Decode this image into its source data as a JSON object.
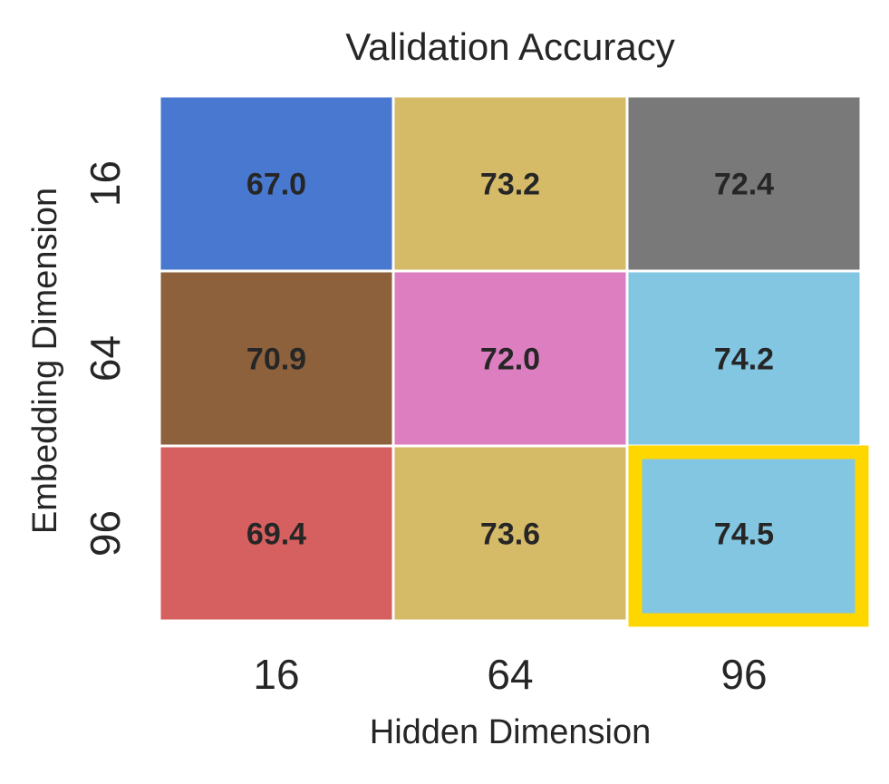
{
  "chart_data": {
    "type": "heatmap",
    "title": "Validation Accuracy",
    "xlabel": "Hidden Dimension",
    "ylabel": "Embedding Dimension",
    "x_categories": [
      "16",
      "64",
      "96"
    ],
    "y_categories": [
      "16",
      "64",
      "96"
    ],
    "values": [
      [
        67.0,
        73.2,
        72.4
      ],
      [
        70.9,
        72.0,
        74.2
      ],
      [
        69.4,
        73.6,
        74.5
      ]
    ],
    "value_labels": [
      [
        "67.0",
        "73.2",
        "72.4"
      ],
      [
        "70.9",
        "72.0",
        "74.2"
      ],
      [
        "69.4",
        "73.6",
        "74.5"
      ]
    ],
    "cell_colors": [
      [
        "#4878d0",
        "#d5bb67",
        "#797979"
      ],
      [
        "#8c613c",
        "#dc7ec0",
        "#82c6e2"
      ],
      [
        "#d65f5f",
        "#d5bb67",
        "#82c6e2"
      ]
    ],
    "highlight": {
      "row": 2,
      "col": 2,
      "color": "#ffd700"
    },
    "grid_line_color": "#ffffff",
    "colorbar": false
  }
}
